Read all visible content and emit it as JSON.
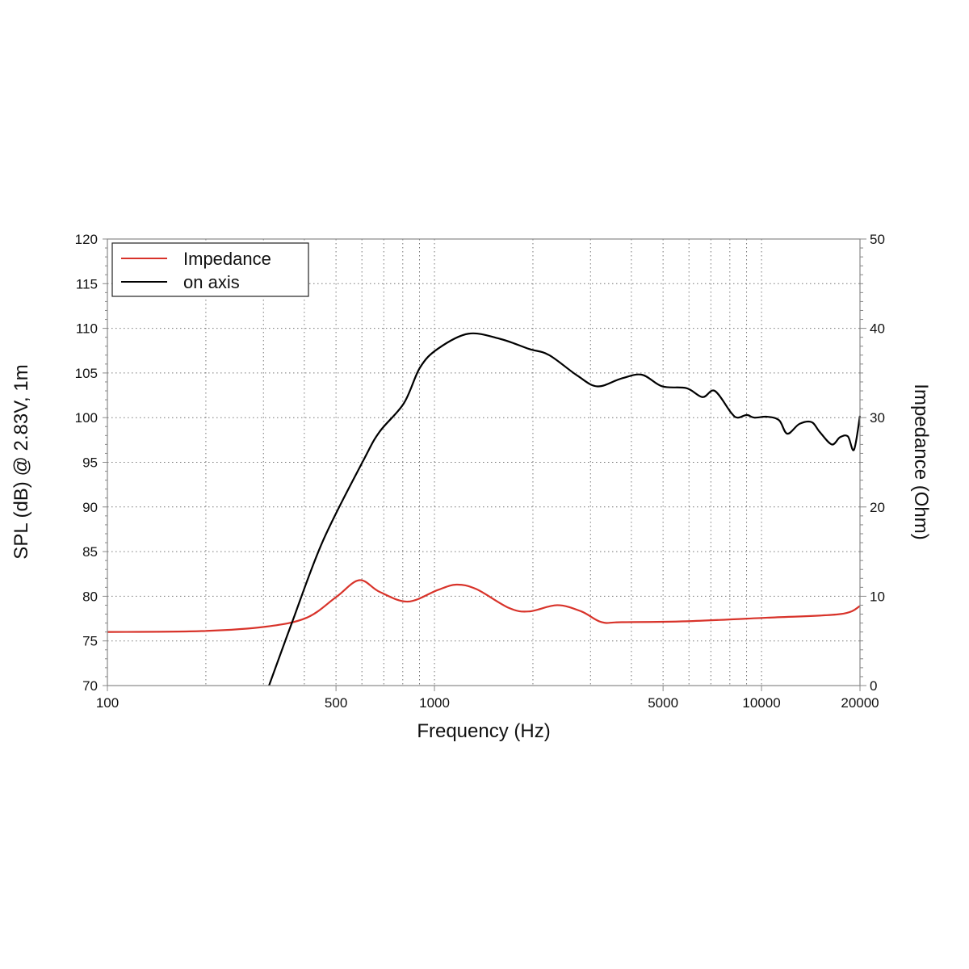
{
  "chart_data": {
    "type": "line",
    "xlabel": "Frequency (Hz)",
    "ylabel": "SPL (dB) @ 2.83V, 1m",
    "y2label": "Impedance (Ohm)",
    "xscale": "log",
    "xlim": [
      100,
      20000
    ],
    "ylim": [
      70,
      120
    ],
    "y2lim": [
      0,
      50
    ],
    "grid": true,
    "legend_position": "top-left",
    "x_ticks": [
      "100",
      "500",
      "1000",
      "5000",
      "10000",
      "20000"
    ],
    "x_tick_values": [
      100,
      500,
      1000,
      5000,
      10000,
      20000
    ],
    "y_ticks": [
      "70",
      "75",
      "80",
      "85",
      "90",
      "95",
      "100",
      "105",
      "110",
      "115",
      "120"
    ],
    "y2_ticks": [
      "0",
      "10",
      "20",
      "30",
      "40",
      "50"
    ],
    "series": [
      {
        "name": "Impedance",
        "axis": "right",
        "color": "#d8332a",
        "x": [
          100,
          194,
          306,
          407,
          500,
          589,
          679,
          829,
          1023,
          1166,
          1343,
          1687,
          1944,
          2373,
          2813,
          3243,
          3740,
          5894,
          10400,
          17370,
          20000
        ],
        "y": [
          6.0,
          6.1,
          6.6,
          7.6,
          9.9,
          11.8,
          10.5,
          9.4,
          10.7,
          11.3,
          10.8,
          8.7,
          8.3,
          9.0,
          8.3,
          7.1,
          7.1,
          7.2,
          7.6,
          8.0,
          8.9
        ]
      },
      {
        "name": "on axis",
        "axis": "left",
        "color": "#000000",
        "x": [
          312,
          368,
          456,
          606,
          679,
          806,
          903,
          1023,
          1271,
          1594,
          1944,
          2243,
          2735,
          3152,
          3740,
          4313,
          4970,
          5894,
          6603,
          7190,
          8054,
          8434,
          9015,
          9499,
          10400,
          11320,
          11990,
          13060,
          14230,
          15060,
          16400,
          17370,
          18370,
          19170,
          20000
        ],
        "y": [
          70,
          77.2,
          86.2,
          95.2,
          98.4,
          101.6,
          105.6,
          107.7,
          109.4,
          108.8,
          107.7,
          107.0,
          104.7,
          103.5,
          104.4,
          104.8,
          103.5,
          103.3,
          102.3,
          103.0,
          100.6,
          100.0,
          100.3,
          100.0,
          100.1,
          99.7,
          98.2,
          99.3,
          99.5,
          98.4,
          97.0,
          97.8,
          97.9,
          96.4,
          100.2
        ]
      }
    ]
  }
}
